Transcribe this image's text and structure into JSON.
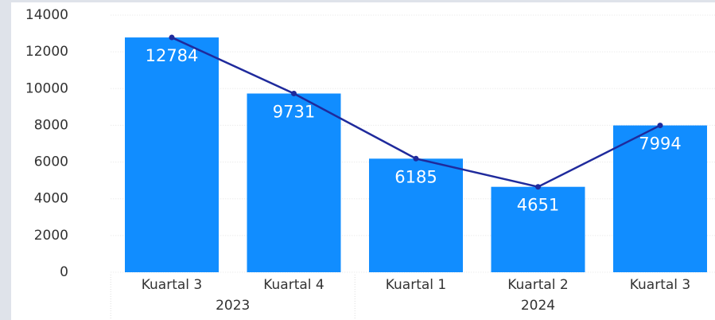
{
  "chart_data": {
    "type": "combo",
    "categories": [
      "Kuartal 3",
      "Kuartal 4",
      "Kuartal 1",
      "Kuartal 2",
      "Kuartal 3"
    ],
    "groups": [
      {
        "label": "2023",
        "span": 2
      },
      {
        "label": "2024",
        "span": 3
      }
    ],
    "series": [
      {
        "type": "bar",
        "color": "#118dff",
        "values": [
          12784,
          9731,
          6185,
          4651,
          7994
        ]
      },
      {
        "type": "line",
        "color": "#1f2a9c",
        "values": [
          12784,
          9731,
          6185,
          4651,
          7994
        ]
      }
    ],
    "ylim": [
      0,
      14000
    ],
    "yticks": [
      0,
      2000,
      4000,
      6000,
      8000,
      10000,
      12000,
      14000
    ],
    "grid": true
  }
}
